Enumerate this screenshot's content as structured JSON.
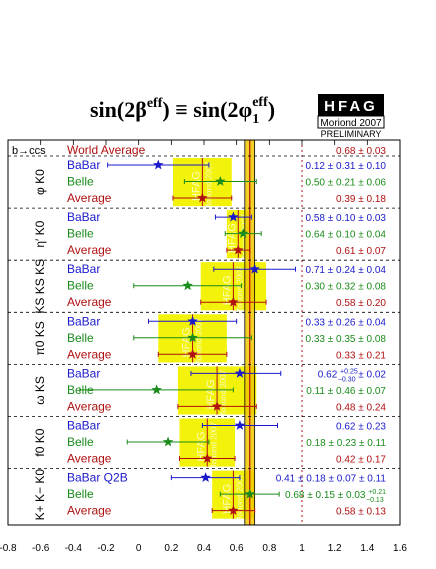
{
  "header": {
    "title_main": "sin(2β",
    "title_sup1": "eff",
    "title_mid": ") ≡ sin(2φ",
    "title_sub": "1",
    "title_sup2": "eff",
    "title_end": ")"
  },
  "logo": {
    "text": "HFAG",
    "line1": "Moriond 2007",
    "line2": "PRELIMINARY"
  },
  "watermark": {
    "line1": "HFAG",
    "line2": "Moriond 2007"
  },
  "colors": {
    "babar": "#1a1acc",
    "belle": "#1a8c1a",
    "average": "#b01010",
    "band": "#f2f20a",
    "world_band": "#f0c800"
  },
  "chart_data": {
    "type": "scatter",
    "title": "sin(2βeff) ≡ sin(2φ1eff)",
    "xlim": [
      -0.8,
      1.6
    ],
    "x_ticks": [
      "-0.8",
      "-0.6",
      "-0.4",
      "-0.2",
      "0",
      "0.2",
      "0.4",
      "0.6",
      "0.8",
      "1",
      "1.2",
      "1.4",
      "1.6"
    ],
    "x_tick_values": [
      -0.8,
      -0.6,
      -0.4,
      -0.2,
      0,
      0.2,
      0.4,
      0.6,
      0.8,
      1.0,
      1.2,
      1.4,
      1.6
    ],
    "physical_bounds": [
      -1,
      1
    ],
    "world_average": {
      "label": "b→ccs",
      "name": "World Average",
      "value": 0.68,
      "error": 0.03,
      "text": "0.68 ± 0.03"
    },
    "modes": [
      {
        "label": "φ K0",
        "rows": [
          {
            "exp": "BaBar",
            "value": 0.12,
            "err": 0.31,
            "text": "0.12 ± 0.31 ± 0.10"
          },
          {
            "exp": "Belle",
            "value": 0.5,
            "err": 0.22,
            "text": "0.50 ± 0.21 ± 0.06"
          },
          {
            "exp": "Average",
            "value": 0.39,
            "err": 0.18,
            "text": "0.39 ± 0.18"
          }
        ]
      },
      {
        "label": "η′ K0",
        "rows": [
          {
            "exp": "BaBar",
            "value": 0.58,
            "err": 0.11,
            "text": "0.58 ± 0.10 ± 0.03"
          },
          {
            "exp": "Belle",
            "value": 0.64,
            "err": 0.11,
            "text": "0.64 ± 0.10 ± 0.04"
          },
          {
            "exp": "Average",
            "value": 0.61,
            "err": 0.07,
            "text": "0.61 ± 0.07"
          }
        ]
      },
      {
        "label": "KS KS KS",
        "rows": [
          {
            "exp": "BaBar",
            "value": 0.71,
            "err": 0.25,
            "text": "0.71 ± 0.24 ± 0.04"
          },
          {
            "exp": "Belle",
            "value": 0.3,
            "err": 0.33,
            "text": "0.30 ± 0.32 ± 0.08"
          },
          {
            "exp": "Average",
            "value": 0.58,
            "err": 0.2,
            "text": "0.58 ± 0.20"
          }
        ]
      },
      {
        "label": "π0 KS",
        "rows": [
          {
            "exp": "BaBar",
            "value": 0.33,
            "err": 0.27,
            "text": "0.33 ± 0.26 ± 0.04"
          },
          {
            "exp": "Belle",
            "value": 0.33,
            "err": 0.36,
            "text": "0.33 ± 0.35 ± 0.08"
          },
          {
            "exp": "Average",
            "value": 0.33,
            "err": 0.21,
            "text": "0.33 ± 0.21"
          }
        ]
      },
      {
        "label": "ω KS",
        "rows": [
          {
            "exp": "BaBar",
            "value": 0.62,
            "err_lo": 0.3,
            "err_hi": 0.25,
            "text": "0.62",
            "text_pre": "0.62",
            "text_up": "+0.25",
            "text_dn": "−0.30",
            "text_post": "± 0.02"
          },
          {
            "exp": "Belle",
            "value": 0.11,
            "err": 0.47,
            "text": "0.11 ± 0.46 ± 0.07"
          },
          {
            "exp": "Average",
            "value": 0.48,
            "err": 0.24,
            "text": "0.48 ± 0.24"
          }
        ]
      },
      {
        "label": "f0 K0",
        "rows": [
          {
            "exp": "BaBar",
            "value": 0.62,
            "err": 0.23,
            "text": "0.62 ± 0.23"
          },
          {
            "exp": "Belle",
            "value": 0.18,
            "err": 0.25,
            "text": "0.18 ± 0.23 ± 0.11"
          },
          {
            "exp": "Average",
            "value": 0.42,
            "err": 0.17,
            "text": "0.42 ± 0.17"
          }
        ]
      },
      {
        "label": "K+ K− K0",
        "rows": [
          {
            "exp": "BaBar Q2B",
            "value": 0.41,
            "err": 0.21,
            "text": "0.41 ± 0.18 ± 0.07 ± 0.11"
          },
          {
            "exp": "Belle",
            "value": 0.68,
            "err": 0.18,
            "text": "0.68 ± 0.15 ± 0.03",
            "text_pre": "0.68 ± 0.15 ± 0.03",
            "text_up": "+0.21",
            "text_dn": "−0.13"
          },
          {
            "exp": "Average",
            "value": 0.58,
            "err": 0.13,
            "text": "0.58 ± 0.13"
          }
        ]
      }
    ]
  }
}
